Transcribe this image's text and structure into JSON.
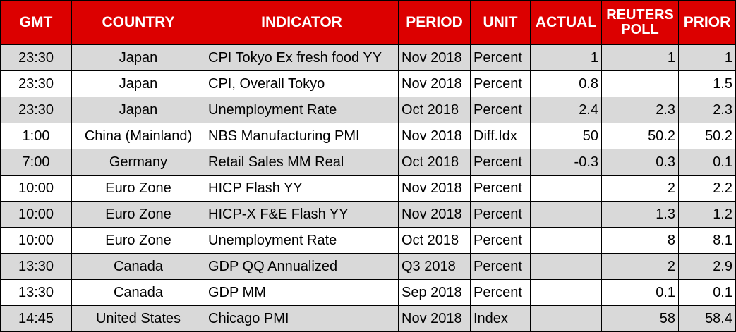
{
  "headers": {
    "gmt": "GMT",
    "country": "COUNTRY",
    "indicator": "INDICATOR",
    "period": "PERIOD",
    "unit": "UNIT",
    "actual": "ACTUAL",
    "poll_line1": "REUTERS",
    "poll_line2": "POLL",
    "prior": "PRIOR"
  },
  "colors": {
    "header_bg": "#dc0000",
    "header_text": "#ffffff",
    "row_shaded": "#d9d9d9",
    "row_plain": "#ffffff"
  },
  "rows": [
    {
      "gmt": "23:30",
      "country": "Japan",
      "indicator": "CPI Tokyo Ex fresh food YY",
      "period": "Nov 2018",
      "unit": "Percent",
      "actual": "1",
      "poll": "1",
      "prior": "1"
    },
    {
      "gmt": "23:30",
      "country": "Japan",
      "indicator": "CPI, Overall Tokyo",
      "period": "Nov 2018",
      "unit": "Percent",
      "actual": "0.8",
      "poll": "",
      "prior": "1.5"
    },
    {
      "gmt": "23:30",
      "country": "Japan",
      "indicator": "Unemployment Rate",
      "period": "Oct 2018",
      "unit": "Percent",
      "actual": "2.4",
      "poll": "2.3",
      "prior": "2.3"
    },
    {
      "gmt": "1:00",
      "country": "China (Mainland)",
      "indicator": "NBS Manufacturing PMI",
      "period": "Nov 2018",
      "unit": "Diff.Idx",
      "actual": "50",
      "poll": "50.2",
      "prior": "50.2"
    },
    {
      "gmt": "7:00",
      "country": "Germany",
      "indicator": "Retail Sales MM Real",
      "period": "Oct 2018",
      "unit": "Percent",
      "actual": "-0.3",
      "poll": "0.3",
      "prior": "0.1"
    },
    {
      "gmt": "10:00",
      "country": "Euro Zone",
      "indicator": "HICP Flash YY",
      "period": "Nov 2018",
      "unit": "Percent",
      "actual": "",
      "poll": "2",
      "prior": "2.2"
    },
    {
      "gmt": "10:00",
      "country": "Euro Zone",
      "indicator": "HICP-X F&E Flash YY",
      "period": "Nov 2018",
      "unit": "Percent",
      "actual": "",
      "poll": "1.3",
      "prior": "1.2"
    },
    {
      "gmt": "10:00",
      "country": "Euro Zone",
      "indicator": "Unemployment Rate",
      "period": "Oct 2018",
      "unit": "Percent",
      "actual": "",
      "poll": "8",
      "prior": "8.1"
    },
    {
      "gmt": "13:30",
      "country": "Canada",
      "indicator": "GDP QQ Annualized",
      "period": "Q3 2018",
      "unit": "Percent",
      "actual": "",
      "poll": "2",
      "prior": "2.9"
    },
    {
      "gmt": "13:30",
      "country": "Canada",
      "indicator": "GDP MM",
      "period": "Sep 2018",
      "unit": "Percent",
      "actual": "",
      "poll": "0.1",
      "prior": "0.1"
    },
    {
      "gmt": "14:45",
      "country": "United States",
      "indicator": "Chicago PMI",
      "period": "Nov 2018",
      "unit": "Index",
      "actual": "",
      "poll": "58",
      "prior": "58.4"
    }
  ]
}
